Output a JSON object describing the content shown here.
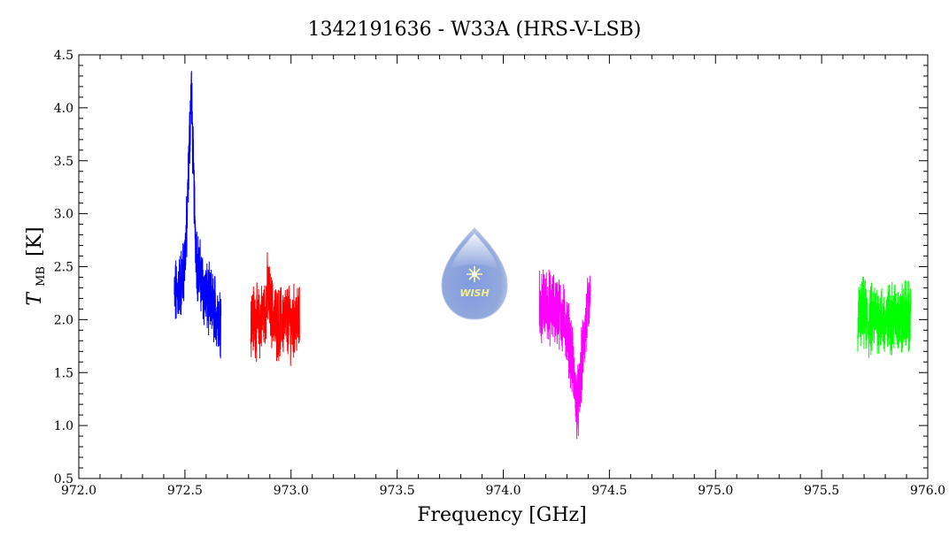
{
  "chart_data": {
    "type": "line",
    "title": "1342191636 - W33A (HRS-V-LSB)",
    "xlabel": "Frequency [GHz]",
    "ylabel_main": "T",
    "ylabel_sub": "MB",
    "ylabel_unit": "[K]",
    "xlim": [
      972.0,
      976.0
    ],
    "ylim": [
      0.5,
      4.5
    ],
    "xticks": [
      "972.0",
      "972.5",
      "973.0",
      "973.5",
      "974.0",
      "974.5",
      "975.0",
      "975.5",
      "976.0"
    ],
    "yticks": [
      "0.5",
      "1.0",
      "1.5",
      "2.0",
      "2.5",
      "3.0",
      "3.5",
      "4.0",
      "4.5"
    ],
    "grid": false,
    "logo_text": "WISH",
    "series": [
      {
        "color": "#0000ff",
        "x": [
          972.45,
          972.47,
          972.49,
          972.5,
          972.51,
          972.52,
          972.53,
          972.54,
          972.55,
          972.56,
          972.58,
          972.6,
          972.62,
          972.64,
          972.66,
          972.67
        ],
        "y": [
          2.2,
          2.3,
          2.4,
          2.6,
          2.9,
          3.6,
          4.2,
          3.4,
          2.8,
          2.5,
          2.35,
          2.2,
          2.15,
          2.1,
          2.05,
          2.0
        ]
      },
      {
        "color": "#ff0000",
        "x": [
          972.81,
          972.83,
          972.85,
          972.87,
          972.88,
          972.89,
          972.9,
          972.92,
          972.94,
          972.96,
          972.98,
          973.0,
          973.02,
          973.04
        ],
        "y": [
          2.0,
          2.0,
          1.95,
          2.05,
          2.1,
          2.3,
          2.15,
          2.0,
          1.95,
          2.0,
          2.0,
          1.95,
          2.0,
          2.0
        ]
      },
      {
        "color": "#ff00ff",
        "x": [
          974.17,
          974.2,
          974.23,
          974.26,
          974.28,
          974.3,
          974.32,
          974.33,
          974.34,
          974.35,
          974.36,
          974.37,
          974.38,
          974.39,
          974.4,
          974.41
        ],
        "y": [
          2.1,
          2.15,
          2.1,
          2.1,
          2.0,
          1.9,
          1.7,
          1.5,
          1.3,
          1.2,
          1.3,
          1.6,
          1.8,
          1.95,
          2.1,
          2.15
        ]
      },
      {
        "color": "#00ff00",
        "x": [
          975.67,
          975.7,
          975.72,
          975.74,
          975.76,
          975.78,
          975.8,
          975.82,
          975.84,
          975.86,
          975.88,
          975.9,
          975.92
        ],
        "y": [
          2.0,
          2.05,
          1.95,
          2.0,
          2.05,
          2.0,
          1.95,
          2.0,
          2.05,
          2.0,
          2.0,
          2.05,
          2.0
        ]
      }
    ]
  }
}
